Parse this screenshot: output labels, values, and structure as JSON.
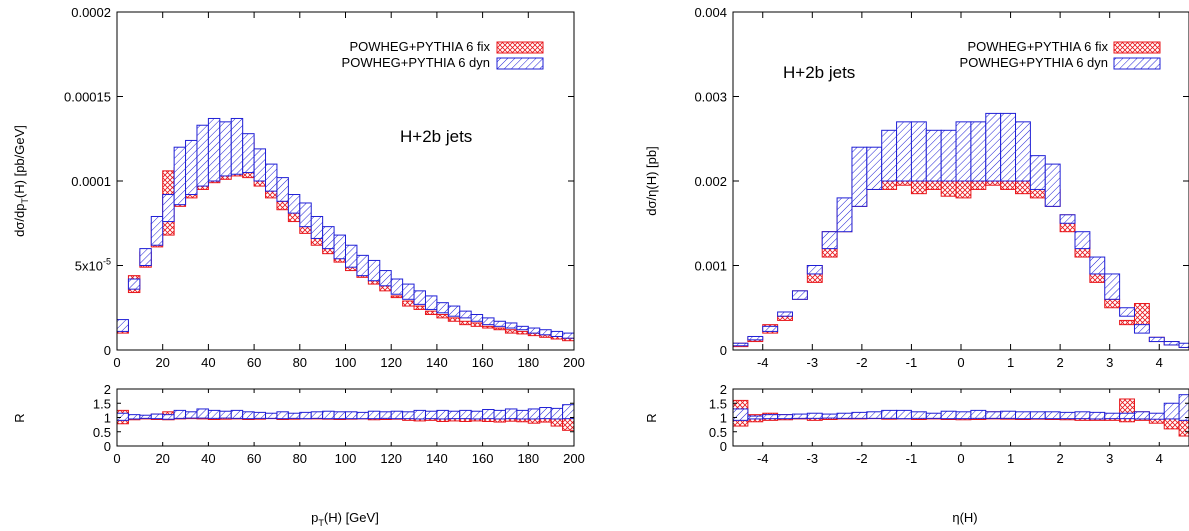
{
  "legend": {
    "fix_label": "POWHEG+PYTHIA 6 fix",
    "dyn_label": "POWHEG+PYTHIA 6 dyn",
    "placement": "top-right"
  },
  "colors": {
    "fix": "#e8161b",
    "dyn": "#1f1fd6"
  },
  "chart_data": [
    {
      "type": "area",
      "title": "",
      "annotation": "H+2b jets",
      "xlabel": "p_T(H) [GeV]",
      "xlabel_main": "p",
      "xlabel_sub": "T",
      "xlabel_rest": "(H) [GeV]",
      "ylabel": "dσ/dp_T(H) [pb/GeV]",
      "ylabel_main": "dσ/dp",
      "ylabel_sub": "T",
      "ylabel_rest": "(H) [pb/GeV]",
      "xlim": [
        0,
        200
      ],
      "ylim": [
        0,
        0.0002
      ],
      "xticks": [
        "0",
        "20",
        "40",
        "60",
        "80",
        "100",
        "120",
        "140",
        "160",
        "180",
        "200"
      ],
      "yticks": [
        "0",
        "5x10-5",
        "0.0001",
        "0.00015",
        "0.0002"
      ],
      "ytick_values": [
        0,
        5e-05,
        0.0001,
        0.00015,
        0.0002
      ],
      "ratio_ylabel": "R",
      "ratio_ylim": [
        0,
        2
      ],
      "ratio_yticks": [
        "0",
        "0.5",
        "1",
        "1.5",
        "2"
      ],
      "bins_lo": [
        0,
        5,
        10,
        15,
        20,
        25,
        30,
        35,
        40,
        45,
        50,
        55,
        60,
        65,
        70,
        75,
        80,
        85,
        90,
        95,
        100,
        105,
        110,
        115,
        120,
        125,
        130,
        135,
        140,
        145,
        150,
        155,
        160,
        165,
        170,
        175,
        180,
        185,
        190,
        195
      ],
      "bin_width": 5,
      "series": [
        {
          "name": "POWHEG+PYTHIA 6 fix",
          "lower": [
            1e-05,
            3.4e-05,
            4.9e-05,
            6.1e-05,
            6.8e-05,
            8.5e-05,
            9e-05,
            9.5e-05,
            9.9e-05,
            0.000101,
            0.000103,
            0.000102,
            9.7e-05,
            9e-05,
            8.3e-05,
            7.6e-05,
            6.9e-05,
            6.2e-05,
            5.7e-05,
            5.2e-05,
            4.7e-05,
            4.3e-05,
            3.9e-05,
            3.5e-05,
            3.1e-05,
            2.6e-05,
            2.4e-05,
            2.1e-05,
            1.9e-05,
            1.7e-05,
            1.5e-05,
            1.4e-05,
            1.3e-05,
            1.2e-05,
            1e-05,
            9.5e-06,
            8.5e-06,
            7.5e-06,
            6.5e-06,
            5.5e-06
          ],
          "upper": [
            1.6e-05,
            4.4e-05,
            5.8e-05,
            7.5e-05,
            0.000106,
            0.000108,
            0.000118,
            0.000127,
            0.000122,
            0.000128,
            0.000119,
            0.000125,
            0.000107,
            0.000101,
            8.8e-05,
            8.3e-05,
            7.3e-05,
            6.8e-05,
            6.2e-05,
            5.6e-05,
            5.1e-05,
            4.6e-05,
            4.1e-05,
            3.8e-05,
            3.2e-05,
            2.9e-05,
            2.6e-05,
            2.3e-05,
            2.1e-05,
            1.9e-05,
            1.7e-05,
            1.6e-05,
            1.4e-05,
            1.3e-05,
            1.2e-05,
            1.1e-05,
            1e-05,
            9e-06,
            8e-06,
            7e-06
          ]
        },
        {
          "name": "POWHEG+PYTHIA 6 dyn",
          "lower": [
            1.1e-05,
            3.6e-05,
            5e-05,
            6.2e-05,
            7.6e-05,
            8.6e-05,
            9.2e-05,
            9.7e-05,
            0.0001,
            0.000103,
            0.000104,
            0.000105,
            0.0001,
            9.4e-05,
            8.8e-05,
            8.1e-05,
            7.3e-05,
            6.6e-05,
            6e-05,
            5.4e-05,
            4.9e-05,
            4.4e-05,
            4.1e-05,
            3.8e-05,
            3.3e-05,
            3e-05,
            2.7e-05,
            2.4e-05,
            2.2e-05,
            2e-05,
            1.9e-05,
            1.7e-05,
            1.5e-05,
            1.4e-05,
            1.3e-05,
            1.2e-05,
            1e-05,
            9e-06,
            8e-06,
            7e-06
          ],
          "upper": [
            1.8e-05,
            4.2e-05,
            6e-05,
            7.9e-05,
            9.2e-05,
            0.00012,
            0.000124,
            0.000133,
            0.000137,
            0.000135,
            0.000137,
            0.000128,
            0.000119,
            0.00011,
            0.000102,
            9.2e-05,
            8.7e-05,
            7.9e-05,
            7.3e-05,
            6.8e-05,
            6.2e-05,
            5.6e-05,
            5.3e-05,
            4.7e-05,
            4.2e-05,
            3.9e-05,
            3.5e-05,
            3.2e-05,
            2.8e-05,
            2.6e-05,
            2.3e-05,
            2.1e-05,
            1.9e-05,
            1.7e-05,
            1.6e-05,
            1.4e-05,
            1.3e-05,
            1.2e-05,
            1.1e-05,
            1e-05
          ]
        }
      ],
      "ratio_series": [
        {
          "name": "POWHEG+PYTHIA 6 fix",
          "lower": [
            0.78,
            0.92,
            0.95,
            0.93,
            0.92,
            0.95,
            0.96,
            0.95,
            0.93,
            0.94,
            0.95,
            0.93,
            0.94,
            0.96,
            0.93,
            0.94,
            0.95,
            0.95,
            0.94,
            0.93,
            0.94,
            0.95,
            0.92,
            0.93,
            0.94,
            0.9,
            0.88,
            0.9,
            0.86,
            0.88,
            0.86,
            0.88,
            0.86,
            0.84,
            0.87,
            0.85,
            0.8,
            0.84,
            0.7,
            0.55
          ],
          "upper": [
            1.25,
            1.08,
            1.05,
            1.12,
            1.2,
            1.05,
            1.15,
            1.25,
            1.12,
            1.15,
            1.08,
            1.18,
            1.06,
            1.05,
            1.07,
            1.06,
            1.05,
            1.08,
            1.06,
            1.05,
            1.07,
            1.15,
            1.05,
            1.05,
            1.05,
            1.05,
            1.06,
            1.04,
            1.06,
            1.05,
            1.06,
            1.05,
            1.05,
            1.04,
            1.06,
            1.05,
            1.05,
            1.06,
            1.05,
            1.1
          ]
        },
        {
          "name": "POWHEG+PYTHIA 6 dyn",
          "lower": [
            0.9,
            0.95,
            0.97,
            0.96,
            0.94,
            0.97,
            0.98,
            0.98,
            0.97,
            0.98,
            0.97,
            0.96,
            0.97,
            0.97,
            0.96,
            0.97,
            0.96,
            0.97,
            0.96,
            0.96,
            0.96,
            0.96,
            0.96,
            0.97,
            0.96,
            0.96,
            0.95,
            0.96,
            0.95,
            0.96,
            0.96,
            0.95,
            0.96,
            0.95,
            0.96,
            0.95,
            0.95,
            0.96,
            0.95,
            0.96
          ],
          "upper": [
            1.15,
            1.1,
            1.08,
            1.12,
            1.1,
            1.25,
            1.2,
            1.3,
            1.25,
            1.22,
            1.25,
            1.2,
            1.18,
            1.15,
            1.2,
            1.15,
            1.18,
            1.2,
            1.22,
            1.2,
            1.2,
            1.18,
            1.22,
            1.2,
            1.22,
            1.2,
            1.25,
            1.22,
            1.25,
            1.22,
            1.25,
            1.22,
            1.28,
            1.25,
            1.3,
            1.25,
            1.3,
            1.35,
            1.32,
            1.45
          ]
        }
      ]
    },
    {
      "type": "area",
      "title": "",
      "annotation": "H+2b jets",
      "xlabel": "η(H)",
      "xlabel_main": "η(H)",
      "xlabel_sub": "",
      "xlabel_rest": "",
      "ylabel": "dσ/η(H) [pb]",
      "ylabel_main": "dσ/η(H) [pb]",
      "ylabel_sub": "",
      "ylabel_rest": "",
      "xlim": [
        -4.6,
        4.6
      ],
      "ylim": [
        0,
        0.004
      ],
      "xticks": [
        "-4",
        "-3",
        "-2",
        "-1",
        "0",
        "1",
        "2",
        "3",
        "4"
      ],
      "xtick_values": [
        -4,
        -3,
        -2,
        -1,
        0,
        1,
        2,
        3,
        4
      ],
      "yticks": [
        "0",
        "0.001",
        "0.002",
        "0.003",
        "0.004"
      ],
      "ytick_values": [
        0,
        0.001,
        0.002,
        0.003,
        0.004
      ],
      "ratio_ylabel": "R",
      "ratio_ylim": [
        0,
        2
      ],
      "ratio_yticks": [
        "0",
        "0.5",
        "1",
        "1.5",
        "2"
      ],
      "bins_lo": [
        -4.6,
        -4.3,
        -4.0,
        -3.7,
        -3.4,
        -3.1,
        -2.8,
        -2.5,
        -2.2,
        -1.9,
        -1.6,
        -1.3,
        -1.0,
        -0.7,
        -0.4,
        -0.1,
        0.2,
        0.5,
        0.8,
        1.1,
        1.4,
        1.7,
        2.0,
        2.3,
        2.6,
        2.9,
        3.2,
        3.5,
        3.8,
        4.1,
        4.4
      ],
      "bin_width": 0.3,
      "series": [
        {
          "name": "POWHEG+PYTHIA 6 fix",
          "lower": [
            4e-05,
            0.0001,
            0.0002,
            0.00035,
            0.0006,
            0.0008,
            0.0011,
            0.0014,
            0.0017,
            0.0019,
            0.0019,
            0.00195,
            0.00185,
            0.0019,
            0.00182,
            0.0018,
            0.0019,
            0.00195,
            0.0019,
            0.00185,
            0.0018,
            0.0017,
            0.0014,
            0.0011,
            0.0008,
            0.0005,
            0.0003,
            0.00025,
            0.0001,
            6e-05,
            3e-05
          ],
          "upper": [
            8e-05,
            0.00015,
            0.0003,
            0.0004,
            0.0007,
            0.001,
            0.0014,
            0.0017,
            0.0021,
            0.0022,
            0.0022,
            0.0021,
            0.0021,
            0.0023,
            0.0021,
            0.0021,
            0.0023,
            0.0024,
            0.0026,
            0.0021,
            0.0022,
            0.0019,
            0.0016,
            0.0013,
            0.0009,
            0.0006,
            0.00035,
            0.00055,
            0.00015,
            0.0001,
            6e-05
          ]
        },
        {
          "name": "POWHEG+PYTHIA 6 dyn",
          "lower": [
            5e-05,
            0.00012,
            0.00022,
            0.0004,
            0.0006,
            0.0009,
            0.0012,
            0.0014,
            0.0017,
            0.0019,
            0.002,
            0.002,
            0.002,
            0.002,
            0.002,
            0.002,
            0.002,
            0.002,
            0.002,
            0.002,
            0.0019,
            0.0017,
            0.0015,
            0.0012,
            0.0009,
            0.0006,
            0.0004,
            0.0002,
            0.0001,
            6e-05,
            3e-05
          ],
          "upper": [
            8e-05,
            0.00016,
            0.00028,
            0.00045,
            0.0007,
            0.001,
            0.0014,
            0.0018,
            0.0024,
            0.0024,
            0.0026,
            0.0027,
            0.0027,
            0.0026,
            0.0026,
            0.0027,
            0.0027,
            0.0028,
            0.0028,
            0.0027,
            0.0023,
            0.0022,
            0.0016,
            0.0014,
            0.0011,
            0.0009,
            0.0005,
            0.0003,
            0.00015,
            0.0001,
            8e-05
          ]
        }
      ],
      "ratio_series": [
        {
          "name": "POWHEG+PYTHIA 6 fix",
          "lower": [
            0.7,
            0.85,
            0.9,
            0.92,
            0.95,
            0.9,
            0.93,
            0.95,
            0.95,
            0.96,
            0.94,
            0.95,
            0.93,
            0.95,
            0.93,
            0.92,
            0.93,
            0.95,
            0.94,
            0.93,
            0.94,
            0.93,
            0.92,
            0.9,
            0.9,
            0.9,
            0.85,
            0.9,
            0.8,
            0.6,
            0.35
          ],
          "upper": [
            1.6,
            1.1,
            1.15,
            1.1,
            1.08,
            1.05,
            1.1,
            1.05,
            1.06,
            1.05,
            1.05,
            1.06,
            1.05,
            1.1,
            1.05,
            1.05,
            1.15,
            1.2,
            1.2,
            1.1,
            1.1,
            1.05,
            1.05,
            1.05,
            1.1,
            1.1,
            1.65,
            1.2,
            1.1,
            1.05,
            1.4
          ]
        },
        {
          "name": "POWHEG+PYTHIA 6 dyn",
          "lower": [
            0.9,
            0.95,
            0.96,
            0.96,
            0.97,
            0.97,
            0.98,
            0.97,
            0.97,
            0.97,
            0.97,
            0.96,
            0.97,
            0.97,
            0.96,
            0.96,
            0.97,
            0.97,
            0.97,
            0.96,
            0.96,
            0.96,
            0.96,
            0.96,
            0.95,
            0.96,
            0.96,
            0.95,
            0.94,
            0.95,
            0.9
          ],
          "upper": [
            1.3,
            1.05,
            1.1,
            1.1,
            1.12,
            1.15,
            1.12,
            1.15,
            1.18,
            1.2,
            1.25,
            1.25,
            1.2,
            1.15,
            1.22,
            1.2,
            1.25,
            1.2,
            1.22,
            1.2,
            1.2,
            1.2,
            1.18,
            1.2,
            1.18,
            1.15,
            1.15,
            1.2,
            1.15,
            1.5,
            1.8
          ]
        }
      ]
    }
  ]
}
